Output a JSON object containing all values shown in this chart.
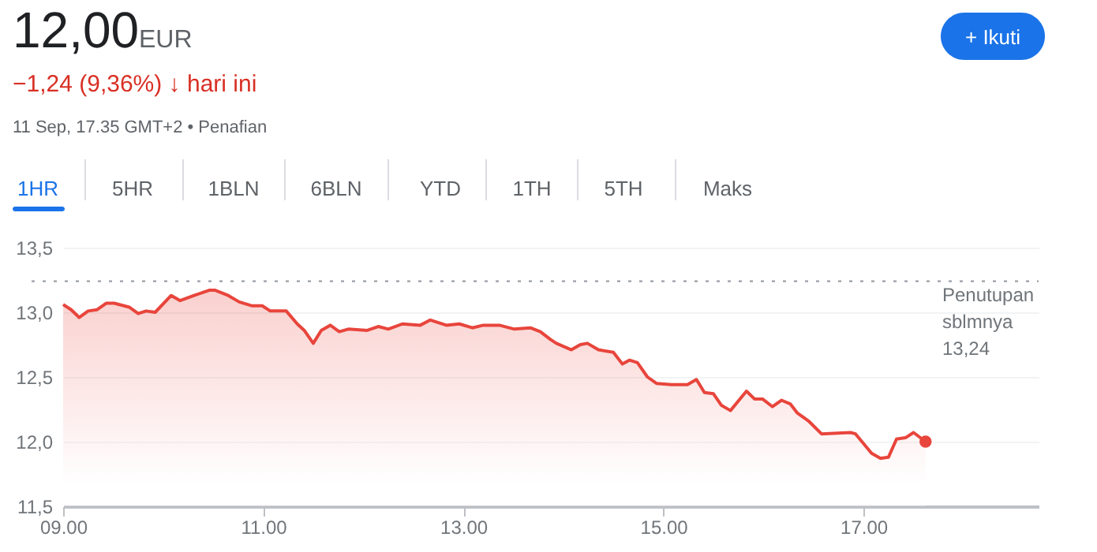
{
  "chart_data": {
    "type": "area",
    "title": "12,00",
    "annotations": [
      "EUR",
      "−1,24 (9,36%) ↓ hari ini",
      "11 Sep, 17.35 GMT+2 • Penafian",
      "+ Ikuti",
      "1HR",
      "5HR",
      "1BLN",
      "6BLN",
      "YTD",
      "1TH",
      "5TH",
      "Maks"
    ],
    "x": [
      9.0,
      9.08,
      9.16,
      9.25,
      9.34,
      9.43,
      9.51,
      9.66,
      9.75,
      9.83,
      9.92,
      10.08,
      10.17,
      10.31,
      10.46,
      10.52,
      10.65,
      10.76,
      10.89,
      10.99,
      11.07,
      11.23,
      11.34,
      11.41,
      11.5,
      11.58,
      11.67,
      11.76,
      11.85,
      12.04,
      12.15,
      12.25,
      12.39,
      12.57,
      12.67,
      12.83,
      12.96,
      13.09,
      13.2,
      13.36,
      13.51,
      13.67,
      13.77,
      13.87,
      13.93,
      14.08,
      14.17,
      14.24,
      14.35,
      14.5,
      14.59,
      14.66,
      14.74,
      14.84,
      14.93,
      15.08,
      15.24,
      15.33,
      15.41,
      15.5,
      15.58,
      15.67,
      15.83,
      15.91,
      15.99,
      16.09,
      16.18,
      16.27,
      16.34,
      16.45,
      16.58,
      16.87,
      16.92,
      17.08,
      17.17,
      17.25,
      17.33,
      17.42,
      17.5,
      17.62
    ],
    "series": [
      {
        "color": "#e8453c",
        "values": [
          13.06,
          13.02,
          12.96,
          13.01,
          13.02,
          13.07,
          13.07,
          13.04,
          12.99,
          13.01,
          13.0,
          13.13,
          13.09,
          13.13,
          13.17,
          13.17,
          13.13,
          13.08,
          13.05,
          13.05,
          13.01,
          13.01,
          12.91,
          12.86,
          12.76,
          12.86,
          12.9,
          12.85,
          12.87,
          12.86,
          12.89,
          12.87,
          12.91,
          12.9,
          12.94,
          12.9,
          12.91,
          12.88,
          12.9,
          12.9,
          12.87,
          12.88,
          12.85,
          12.79,
          12.76,
          12.71,
          12.75,
          12.76,
          12.71,
          12.69,
          12.6,
          12.63,
          12.61,
          12.5,
          12.45,
          12.44,
          12.44,
          12.48,
          12.38,
          12.37,
          12.28,
          12.24,
          12.39,
          12.33,
          12.33,
          12.27,
          12.32,
          12.29,
          12.22,
          12.16,
          12.06,
          12.07,
          12.06,
          11.91,
          11.87,
          11.88,
          12.02,
          12.03,
          12.07,
          12.0
        ]
      },
      {
        "type": "scatter",
        "marker": "circle",
        "color": "#e8453c",
        "x": [
          17.62
        ],
        "values": [
          12.0
        ]
      }
    ],
    "xlim": [
      9,
      18.75
    ],
    "xticks": [
      {
        "value": 9,
        "label": "09.00"
      },
      {
        "value": 11,
        "label": "11.00"
      },
      {
        "value": 13,
        "label": "13.00"
      },
      {
        "value": 15,
        "label": "15.00"
      },
      {
        "value": 17,
        "label": "17.00"
      }
    ],
    "ylim": [
      11.5,
      13.5
    ],
    "yticks": [
      {
        "value": 11.5,
        "label": "11,5"
      },
      {
        "value": 12.0,
        "label": "12,0"
      },
      {
        "value": 12.5,
        "label": "12,5"
      },
      {
        "value": 13.0,
        "label": "13,0"
      },
      {
        "value": 13.5,
        "label": "13,5"
      }
    ],
    "grid": "y",
    "ref_lines": [
      {
        "axis": "y",
        "value": 13.24,
        "label": "Penutupan sblmnya 13,24",
        "color": "#9aa0a6",
        "line_style": "dotted"
      }
    ]
  }
}
